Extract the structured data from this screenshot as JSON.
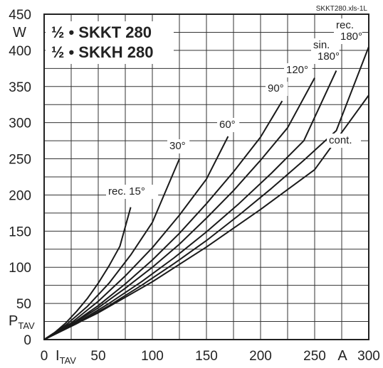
{
  "chart_data": {
    "type": "line",
    "source_tag": "SKKT280.xls-1L",
    "title_lines": [
      "½ • SKKT 280",
      "½ • SKKH 280"
    ],
    "xlabel": "I",
    "xlabel_sub": "TAV",
    "xunit": "A",
    "ylabel": "P",
    "ylabel_sub": "TAV",
    "yunit": "W",
    "xlim": [
      0,
      300
    ],
    "ylim": [
      0,
      450
    ],
    "x_ticks": [
      0,
      50,
      100,
      150,
      200,
      250,
      300
    ],
    "y_ticks": [
      0,
      50,
      100,
      150,
      200,
      250,
      300,
      350,
      400,
      450
    ],
    "grid": true,
    "series": [
      {
        "name": "rec. 15°",
        "x": [
          0,
          10,
          20,
          30,
          40,
          50,
          60,
          70,
          80
        ],
        "y": [
          0,
          10,
          23,
          39,
          57,
          78,
          102,
          129,
          183
        ]
      },
      {
        "name": "30°",
        "x": [
          0,
          20,
          40,
          60,
          80,
          100,
          125
        ],
        "y": [
          0,
          20,
          46,
          78,
          117,
          162,
          250
        ]
      },
      {
        "name": "60°",
        "x": [
          0,
          25,
          50,
          75,
          100,
          125,
          150,
          170
        ],
        "y": [
          0,
          23,
          53,
          88,
          127,
          172,
          222,
          281
        ]
      },
      {
        "name": "90°",
        "x": [
          0,
          25,
          50,
          75,
          100,
          125,
          150,
          175,
          200,
          220
        ],
        "y": [
          0,
          21,
          47,
          77,
          110,
          147,
          188,
          232,
          280,
          330
        ]
      },
      {
        "name": "120°",
        "x": [
          0,
          25,
          50,
          75,
          100,
          125,
          150,
          175,
          200,
          225,
          250
        ],
        "y": [
          0,
          20,
          44,
          71,
          100,
          132,
          168,
          206,
          248,
          293,
          362
        ]
      },
      {
        "name": "sin. 180°",
        "x": [
          0,
          30,
          60,
          90,
          120,
          150,
          180,
          210,
          240,
          270
        ],
        "y": [
          0,
          23,
          50,
          80,
          113,
          149,
          188,
          230,
          275,
          372
        ]
      },
      {
        "name": "rec. 180°",
        "x": [
          0,
          30,
          60,
          90,
          120,
          150,
          180,
          210,
          240,
          270,
          300
        ],
        "y": [
          0,
          22,
          47,
          75,
          105,
          137,
          172,
          209,
          248,
          289,
          405
        ]
      },
      {
        "name": "cont.",
        "x": [
          0,
          50,
          100,
          150,
          200,
          250,
          300
        ],
        "y": [
          0,
          37,
          80,
          128,
          180,
          235,
          338
        ]
      }
    ]
  }
}
